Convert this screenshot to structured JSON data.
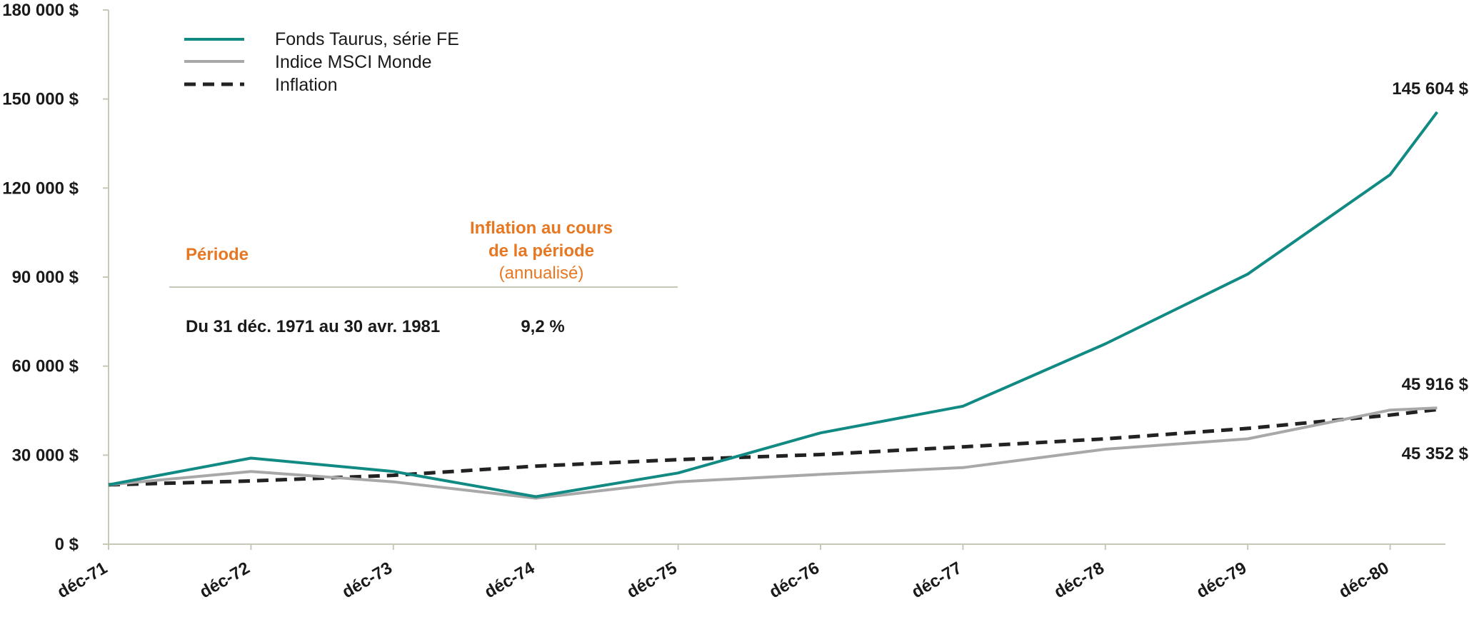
{
  "chart_data": {
    "type": "line",
    "x": [
      "déc-71",
      "déc-72",
      "déc-73",
      "déc-74",
      "déc-75",
      "déc-76",
      "déc-77",
      "déc-78",
      "déc-79",
      "déc-80"
    ],
    "ylim": [
      0,
      180000
    ],
    "yticks": [
      "0 $",
      "30 000 $",
      "60 000 $",
      "90 000 $",
      "120 000 $",
      "150 000 $",
      "180 000 $"
    ],
    "ytick_values": [
      0,
      30000,
      60000,
      90000,
      120000,
      150000,
      180000
    ],
    "grid": false,
    "legend_position": "top-left",
    "series": [
      {
        "name": "Fonds Taurus, série FE",
        "color": "#108a82",
        "style": "solid",
        "x": [
          0,
          1,
          2,
          3,
          4,
          5,
          6,
          7,
          8,
          9,
          9.33
        ],
        "values": [
          20000,
          29000,
          24500,
          16000,
          24000,
          37500,
          46500,
          67500,
          91000,
          124500,
          145604
        ],
        "end_label": "145 604 $"
      },
      {
        "name": "Indice MSCI Monde",
        "color": "#a8a8a8",
        "style": "solid",
        "x": [
          0,
          1,
          2,
          3,
          4,
          5,
          6,
          7,
          8,
          9,
          9.33
        ],
        "values": [
          20000,
          24500,
          21000,
          15500,
          21000,
          23500,
          25800,
          32000,
          35500,
          45200,
          45916
        ],
        "end_label": "45 916 $"
      },
      {
        "name": "Inflation",
        "color": "#222222",
        "style": "dashed",
        "x": [
          0,
          1,
          2,
          3,
          4,
          5,
          6,
          7,
          8,
          9,
          9.33
        ],
        "values": [
          20000,
          21300,
          23200,
          26300,
          28500,
          30200,
          32800,
          35500,
          39000,
          43500,
          45352
        ],
        "end_label": "45 352 $"
      }
    ],
    "table": {
      "col1_header": "Période",
      "col2_header_line1": "Inflation au cours",
      "col2_header_line2": "de la période",
      "col2_header_line3": "(annualisé)",
      "row_period": "Du 31 déc. 1971 au 30 avr. 1981",
      "row_value": "9,2 %"
    }
  }
}
